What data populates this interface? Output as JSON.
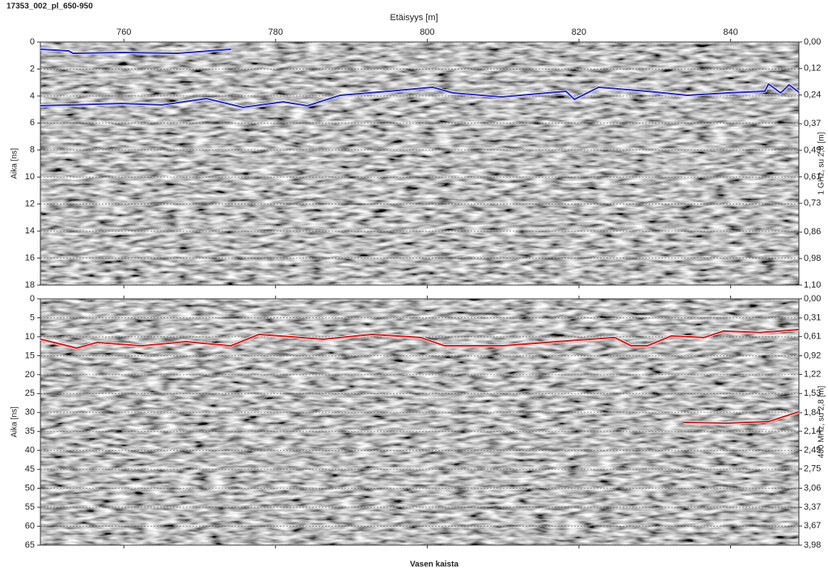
{
  "title": "17353_002_pl_650-950",
  "xlabel": "Etäisyys [m]",
  "footer": "Vasen kaista",
  "chart_data": [
    {
      "type": "line",
      "ylabel": "Aika [ns]",
      "y2label": "1 GHz, su 2,8 [m]",
      "y_inverted": true,
      "xlim": [
        749,
        849
      ],
      "xticks": [
        760,
        780,
        800,
        820,
        840
      ],
      "ylim": [
        0,
        18
      ],
      "yticks": [
        0,
        2,
        4,
        6,
        8,
        10,
        12,
        14,
        16,
        18
      ],
      "grid": true,
      "y2lim": [
        0,
        1.1
      ],
      "y2ticks": [
        {
          "value": 0,
          "label": "0,00"
        },
        {
          "value": 0.12,
          "label": "0,12"
        },
        {
          "value": 0.24,
          "label": "0,24"
        },
        {
          "value": 0.37,
          "label": "0,37"
        },
        {
          "value": 0.49,
          "label": "0,49"
        },
        {
          "value": 0.61,
          "label": "0,61"
        },
        {
          "value": 0.73,
          "label": "0,73"
        },
        {
          "value": 0.86,
          "label": "0,86"
        },
        {
          "value": 0.98,
          "label": "0,98"
        },
        {
          "value": 1.1,
          "label": "1,10"
        }
      ],
      "series": [
        {
          "color": "#1f1fe0",
          "x": [
            749,
            752.7,
            753.3,
            759.7,
            767.1,
            774.1
          ],
          "values": [
            0.54,
            0.66,
            0.84,
            0.78,
            0.84,
            0.54
          ]
        },
        {
          "color": "#1f1fe0",
          "x": [
            749,
            753.3,
            759.7,
            765,
            770.9,
            775.7,
            781,
            784.2,
            788.5,
            794.9,
            800.7,
            803.4,
            809.8,
            818.3,
            819.4,
            822.6,
            829,
            834.3,
            839.7,
            844.5,
            845,
            846.6,
            847.7,
            849
          ],
          "values": [
            4.72,
            4.66,
            4.55,
            4.66,
            4.19,
            4.84,
            4.43,
            4.72,
            3.95,
            3.65,
            3.35,
            3.77,
            4.07,
            3.65,
            4.25,
            3.35,
            3.65,
            3.95,
            3.77,
            3.65,
            3.11,
            3.77,
            3.17,
            3.71
          ]
        }
      ]
    },
    {
      "type": "line",
      "ylabel": "Aika [ns]",
      "y2label": "400 MHz, su 2,8 [m]",
      "y_inverted": true,
      "xlim": [
        749,
        849
      ],
      "xticks": [
        760,
        780,
        800,
        820,
        840
      ],
      "ylim": [
        0,
        65
      ],
      "yticks": [
        0,
        5,
        10,
        15,
        20,
        25,
        30,
        35,
        40,
        45,
        50,
        55,
        60,
        65
      ],
      "grid": true,
      "y2lim": [
        0,
        3.98
      ],
      "y2ticks": [
        {
          "value": 0,
          "label": "0,00"
        },
        {
          "value": 0.31,
          "label": "0,31"
        },
        {
          "value": 0.61,
          "label": "0,61"
        },
        {
          "value": 0.92,
          "label": "0,92"
        },
        {
          "value": 1.22,
          "label": "1,22"
        },
        {
          "value": 1.53,
          "label": "1,53"
        },
        {
          "value": 1.84,
          "label": "1,84"
        },
        {
          "value": 2.14,
          "label": "2,14"
        },
        {
          "value": 2.45,
          "label": "2,45"
        },
        {
          "value": 2.75,
          "label": "2,75"
        },
        {
          "value": 3.06,
          "label": "3,06"
        },
        {
          "value": 3.37,
          "label": "3,37"
        },
        {
          "value": 3.67,
          "label": "3,67"
        },
        {
          "value": 3.98,
          "label": "3,98"
        }
      ],
      "series": [
        {
          "color": "#e81010",
          "x": [
            749,
            753.8,
            756.5,
            762.3,
            768.2,
            774.1,
            777.8,
            786.3,
            792.7,
            799.1,
            802.3,
            809.8,
            818.3,
            824.7,
            826.9,
            829,
            832.2,
            836.5,
            839.1,
            843.9,
            849
          ],
          "values": [
            10.66,
            13.0,
            11.5,
            12.4,
            11.3,
            12.4,
            9.38,
            10.66,
            9.38,
            10.2,
            12.4,
            12.4,
            11.1,
            10.2,
            12.4,
            12.4,
            9.8,
            10.2,
            8.5,
            8.9,
            8.1
          ]
        },
        {
          "color": "#e81010",
          "x": [
            833.8,
            839.7,
            845,
            849
          ],
          "values": [
            32.6,
            32.8,
            32.4,
            29.8
          ]
        }
      ]
    }
  ]
}
